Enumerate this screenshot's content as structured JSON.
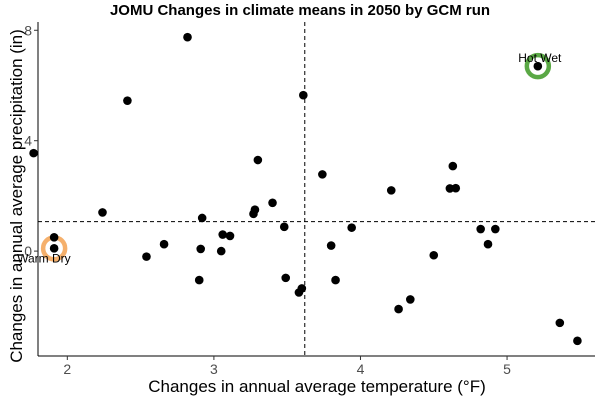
{
  "chart_data": {
    "type": "scatter",
    "title": "JOMU Changes in climate means in 2050 by GCM run",
    "xlabel": "Changes in annual average temperature (°F)",
    "ylabel": "Changes in annual average precipitation (in)",
    "xlim": [
      1.8,
      5.6
    ],
    "ylim": [
      -3.8,
      8.3
    ],
    "x_ticks": [
      {
        "value": 2,
        "label": "2"
      },
      {
        "value": 3,
        "label": "3"
      },
      {
        "value": 4,
        "label": "4"
      },
      {
        "value": 5,
        "label": "5"
      }
    ],
    "y_ticks": [
      {
        "value": 0,
        "label": "0"
      },
      {
        "value": 4,
        "label": "4"
      },
      {
        "value": 8,
        "label": "8"
      }
    ],
    "grid": false,
    "reference_lines": {
      "x": 3.62,
      "y": 1.07
    },
    "points": [
      {
        "x": 1.77,
        "y": 3.55
      },
      {
        "x": 1.91,
        "y": 0.5
      },
      {
        "x": 1.91,
        "y": 0.1
      },
      {
        "x": 2.24,
        "y": 1.4
      },
      {
        "x": 2.41,
        "y": 5.45
      },
      {
        "x": 2.54,
        "y": -0.2
      },
      {
        "x": 2.66,
        "y": 0.25
      },
      {
        "x": 2.82,
        "y": 7.75
      },
      {
        "x": 2.9,
        "y": -1.05
      },
      {
        "x": 2.91,
        "y": 0.08
      },
      {
        "x": 2.92,
        "y": 1.2
      },
      {
        "x": 3.05,
        "y": 0.0
      },
      {
        "x": 3.06,
        "y": 0.6
      },
      {
        "x": 3.11,
        "y": 0.55
      },
      {
        "x": 3.27,
        "y": 1.35
      },
      {
        "x": 3.28,
        "y": 1.5
      },
      {
        "x": 3.3,
        "y": 3.3
      },
      {
        "x": 3.4,
        "y": 1.75
      },
      {
        "x": 3.48,
        "y": 0.88
      },
      {
        "x": 3.49,
        "y": -0.97
      },
      {
        "x": 3.58,
        "y": -1.5
      },
      {
        "x": 3.6,
        "y": -1.35
      },
      {
        "x": 3.61,
        "y": 5.65
      },
      {
        "x": 3.74,
        "y": 2.78
      },
      {
        "x": 3.8,
        "y": 0.2
      },
      {
        "x": 3.83,
        "y": -1.05
      },
      {
        "x": 3.94,
        "y": 0.85
      },
      {
        "x": 4.21,
        "y": 2.2
      },
      {
        "x": 4.26,
        "y": -2.1
      },
      {
        "x": 4.34,
        "y": -1.75
      },
      {
        "x": 4.5,
        "y": -0.15
      },
      {
        "x": 4.61,
        "y": 2.27
      },
      {
        "x": 4.63,
        "y": 3.08
      },
      {
        "x": 4.65,
        "y": 2.28
      },
      {
        "x": 4.82,
        "y": 0.8
      },
      {
        "x": 4.87,
        "y": 0.25
      },
      {
        "x": 4.92,
        "y": 0.8
      },
      {
        "x": 5.21,
        "y": 6.7
      },
      {
        "x": 5.36,
        "y": -2.6
      },
      {
        "x": 5.48,
        "y": -3.25
      }
    ],
    "highlights": [
      {
        "label": "Hot Wet",
        "x": 5.21,
        "y": 6.7,
        "color": "#5aa845",
        "label_side": "top-center"
      },
      {
        "label": "Warm Dry",
        "x": 1.91,
        "y": 0.1,
        "color": "#f5b06c",
        "label_side": "below-right"
      }
    ],
    "point_color": "#000000"
  }
}
